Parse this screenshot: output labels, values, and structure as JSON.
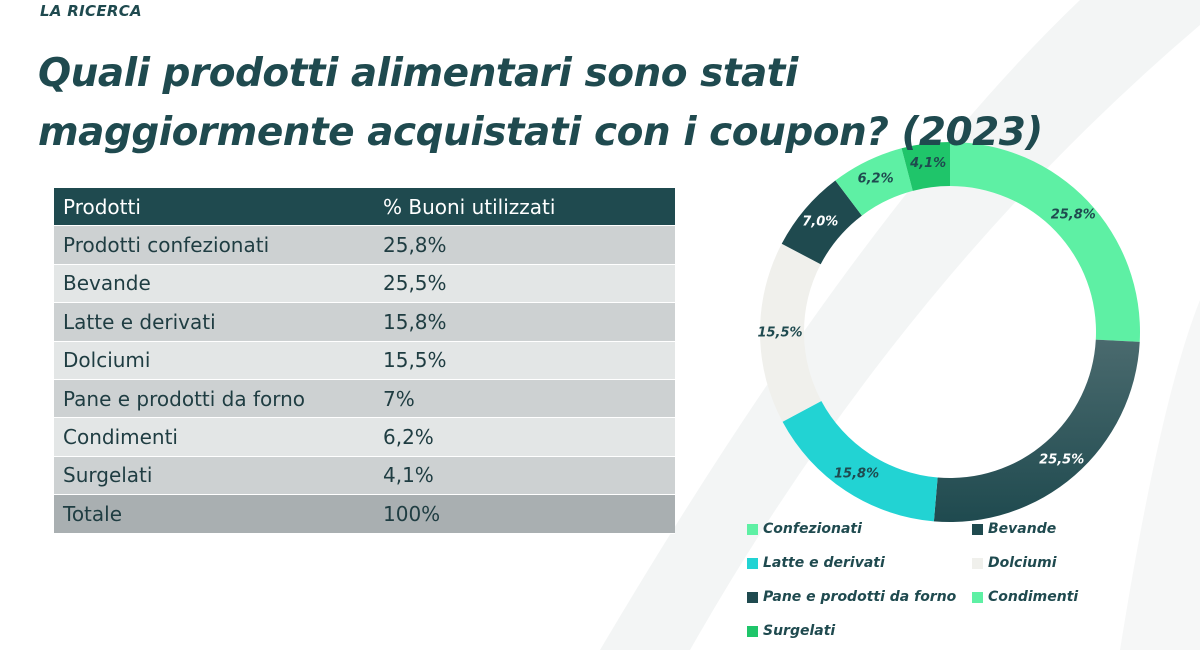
{
  "header": {
    "kicker": "LA RICERCA",
    "title_line1": "Quali prodotti alimentari sono stati",
    "title_line2": "maggiormente acquistati con i coupon? (2023)"
  },
  "table": {
    "headers": [
      "Prodotti",
      "% Buoni utilizzati"
    ],
    "rows": [
      {
        "product": "Prodotti confezionati",
        "percent": "25,8%"
      },
      {
        "product": "Bevande",
        "percent": "25,5%"
      },
      {
        "product": "Latte e derivati",
        "percent": "15,8%"
      },
      {
        "product": "Dolciumi",
        "percent": "15,5%"
      },
      {
        "product": "Pane e prodotti da forno",
        "percent": "7%"
      },
      {
        "product": "Condimenti",
        "percent": "6,2%"
      },
      {
        "product": "Surgelati",
        "percent": "4,1%"
      }
    ],
    "total": {
      "product": "Totale",
      "percent": "100%"
    }
  },
  "chart_data": {
    "type": "pie",
    "donut": true,
    "title": "",
    "categories": [
      "Confezionati",
      "Bevande",
      "Latte e derivati",
      "Dolciumi",
      "Pane e prodotti da forno",
      "Condimenti",
      "Surgelati"
    ],
    "values": [
      25.8,
      25.5,
      15.8,
      15.5,
      7.0,
      6.2,
      4.1
    ],
    "labels": [
      "25,8%",
      "25,5%",
      "15,8%",
      "15,5%",
      "7,0%",
      "6,2%",
      "4,1%"
    ],
    "colors": [
      "#5ef0a4",
      "#1f4a4f",
      "#22d3d3",
      "#f0f0ec",
      "#1f4a4f",
      "#5ef0a4",
      "#1fc56a"
    ],
    "label_colors": [
      "#1f4a4f",
      "#ffffff",
      "#1f4a4f",
      "#1f4a4f",
      "#ffffff",
      "#1f4a4f",
      "#1f4a4f"
    ],
    "legend_position": "bottom",
    "legend": [
      "Confezionati",
      "Bevande",
      "Latte e derivati",
      "Dolciumi",
      "Pane e prodotti da forno",
      "Condimenti",
      "Surgelati"
    ]
  }
}
